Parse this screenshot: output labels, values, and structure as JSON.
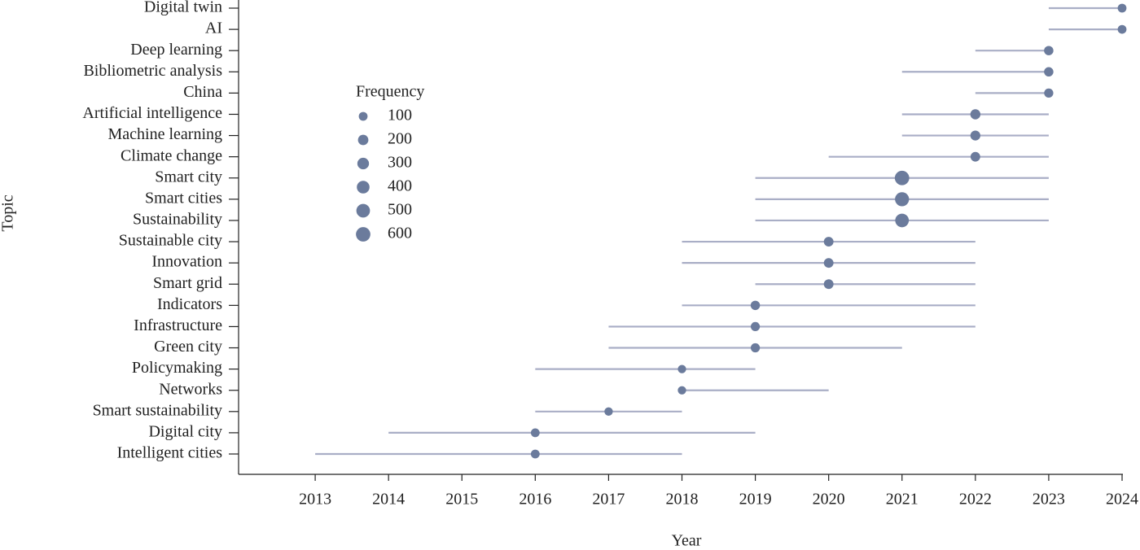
{
  "chart_data": {
    "type": "trend",
    "x_label": "Year",
    "y_label": "Topic",
    "categories": [
      "Digital twin",
      "AI",
      "Deep learning",
      "Bibliometric analysis",
      "China",
      "Artificial intelligence",
      "Machine learning",
      "Climate change",
      "Smart city",
      "Smart cities",
      "Sustainability",
      "Sustainable city",
      "Innovation",
      "Smart grid",
      "Indicators",
      "Infrastructure",
      "Green city",
      "Policymaking",
      "Networks",
      "Smart sustainability",
      "Digital city",
      "Intelligent cities"
    ],
    "start": [
      2023,
      2023,
      2022,
      2021,
      2022,
      2021,
      2021,
      2020,
      2019,
      2019,
      2019,
      2018,
      2018,
      2019,
      2018,
      2017,
      2017,
      2016,
      2018,
      2016,
      2014,
      2013
    ],
    "end": [
      2024,
      2024,
      2023,
      2023,
      2023,
      2023,
      2023,
      2023,
      2023,
      2023,
      2023,
      2022,
      2022,
      2022,
      2022,
      2022,
      2021,
      2019,
      2020,
      2018,
      2019,
      2018
    ],
    "median": [
      2024,
      2024,
      2023,
      2023,
      2023,
      2022,
      2022,
      2022,
      2021,
      2021,
      2021,
      2020,
      2020,
      2020,
      2019,
      2019,
      2019,
      2018,
      2018,
      2017,
      2016,
      2016
    ],
    "frequency": [
      100,
      100,
      130,
      130,
      120,
      180,
      170,
      150,
      600,
      550,
      500,
      150,
      150,
      150,
      130,
      120,
      120,
      80,
      80,
      80,
      100,
      100
    ],
    "line_color": "#a9aec6",
    "point_color": "#6b7b9c",
    "xlim": [
      2012,
      2024
    ],
    "xticks": [
      2013,
      2014,
      2015,
      2016,
      2017,
      2018,
      2019,
      2020,
      2021,
      2022,
      2023,
      2024
    ],
    "size_legend": {
      "title": "Frequency",
      "values": [
        100,
        200,
        300,
        400,
        500,
        600
      ]
    }
  }
}
